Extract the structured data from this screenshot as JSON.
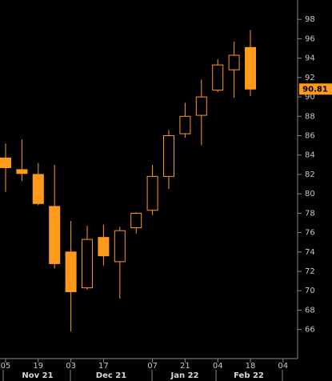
{
  "chart_data": {
    "type": "candlestick",
    "categories": [
      "05",
      null,
      "19",
      null,
      "03",
      null,
      "17",
      null,
      null,
      "07",
      null,
      "21",
      null,
      "04",
      null,
      "18",
      null,
      "04"
    ],
    "months": [
      "Nov 21",
      "Dec 21",
      "Jan 22",
      "Feb 22"
    ],
    "open": [
      83.7,
      82.5,
      82,
      78.7,
      74,
      70.3,
      75.5,
      73,
      76.5,
      78.3,
      81.8,
      86.2,
      88.1,
      90.7,
      92.8,
      95.1,
      null,
      null
    ],
    "high": [
      85.2,
      85.6,
      83.2,
      83,
      77.2,
      76.7,
      76.8,
      76.6,
      78.1,
      83,
      86.6,
      89.4,
      91.8,
      93.9,
      95.7,
      96.9,
      null,
      null
    ],
    "low": [
      80.2,
      81.3,
      78.8,
      72.3,
      65.8,
      70.1,
      72.6,
      69.2,
      75.9,
      77.8,
      80.5,
      85.8,
      85,
      90.5,
      89.9,
      90.1,
      null,
      null
    ],
    "close": [
      82.7,
      82.1,
      79,
      72.8,
      69.9,
      75.3,
      73.6,
      76.2,
      78,
      81.8,
      86,
      88,
      90,
      93.3,
      94.3,
      90.81,
      null,
      null
    ],
    "color": "#ff9a1a",
    "last_price": 90.81,
    "ylim": [
      63,
      100
    ],
    "yticks": [
      66,
      68,
      70,
      72,
      74,
      76,
      78,
      80,
      82,
      84,
      86,
      88,
      90,
      92,
      94,
      96,
      98
    ]
  }
}
